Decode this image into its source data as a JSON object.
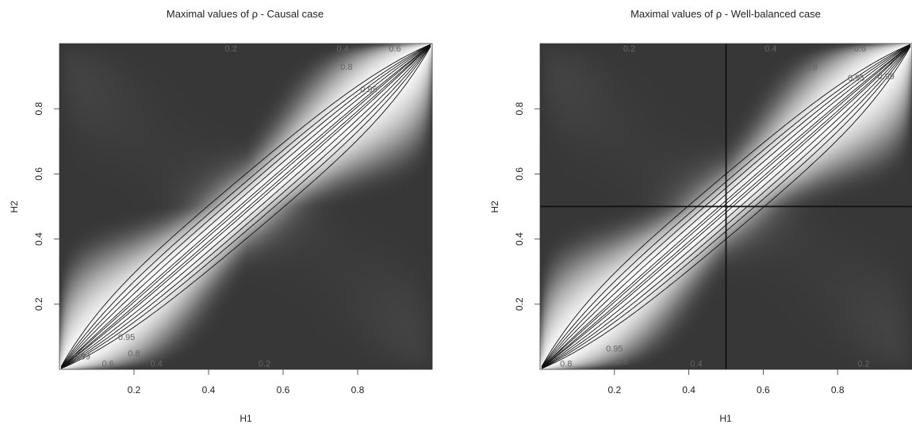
{
  "chart_data": [
    {
      "type": "heatmap",
      "title": "Maximal values of ρ - Causal case",
      "xlabel": "H1",
      "ylabel": "H2",
      "xlim": [
        0,
        1
      ],
      "ylim": [
        0,
        1
      ],
      "x_ticks": [
        0.2,
        0.4,
        0.6,
        0.8
      ],
      "y_ticks": [
        0.2,
        0.4,
        0.6,
        0.8
      ],
      "x_tick_labels": [
        "0.2",
        "0.4",
        "0.6",
        "0.8"
      ],
      "y_tick_labels": [
        "0.2",
        "0.4",
        "0.6",
        "0.8"
      ],
      "contour_levels": [
        0.2,
        0.4,
        0.6,
        0.8,
        0.95,
        0.99
      ],
      "contour_labels": [
        {
          "text": "0.2",
          "h1": 0.46,
          "h2": 0.985
        },
        {
          "text": "0.4",
          "h1": 0.76,
          "h2": 0.985
        },
        {
          "text": "0.6",
          "h1": 0.9,
          "h2": 0.985
        },
        {
          "text": "0.8",
          "h1": 0.77,
          "h2": 0.93
        },
        {
          "text": "0.95",
          "h1": 0.83,
          "h2": 0.86
        },
        {
          "text": "0.99",
          "h1": 0.06,
          "h2": 0.04
        },
        {
          "text": "0.95",
          "h1": 0.18,
          "h2": 0.1
        },
        {
          "text": "0.8",
          "h1": 0.2,
          "h2": 0.05
        },
        {
          "text": "0.6",
          "h1": 0.13,
          "h2": 0.018
        },
        {
          "text": "0.4",
          "h1": 0.26,
          "h2": 0.018
        },
        {
          "text": "0.2",
          "h1": 0.55,
          "h2": 0.018
        }
      ],
      "reference_lines": [],
      "colormap": "white (rho=1 on diagonal) to dark gray (rho=0 at off-diagonal corners)"
    },
    {
      "type": "heatmap",
      "title": "Maximal values of ρ - Well-balanced case",
      "xlabel": "H1",
      "ylabel": "H2",
      "xlim": [
        0,
        1
      ],
      "ylim": [
        0,
        1
      ],
      "x_ticks": [
        0.2,
        0.4,
        0.6,
        0.8
      ],
      "y_ticks": [
        0.2,
        0.4,
        0.6,
        0.8
      ],
      "x_tick_labels": [
        "0.2",
        "0.4",
        "0.6",
        "0.8"
      ],
      "y_tick_labels": [
        "0.2",
        "0.4",
        "0.6",
        "0.8"
      ],
      "contour_levels": [
        0.2,
        0.4,
        0.6,
        0.8,
        0.95,
        0.99
      ],
      "contour_labels": [
        {
          "text": "0.2",
          "h1": 0.24,
          "h2": 0.985
        },
        {
          "text": "0.4",
          "h1": 0.62,
          "h2": 0.985
        },
        {
          "text": "0.6",
          "h1": 0.86,
          "h2": 0.985
        },
        {
          "text": "0.8",
          "h1": 0.73,
          "h2": 0.93
        },
        {
          "text": "0.95",
          "h1": 0.85,
          "h2": 0.895
        },
        {
          "text": "0.99",
          "h1": 0.93,
          "h2": 0.9
        },
        {
          "text": "0.95",
          "h1": 0.2,
          "h2": 0.065
        },
        {
          "text": "0.8",
          "h1": 0.07,
          "h2": 0.018
        },
        {
          "text": "0.6",
          "h1": 0.22,
          "h2": 0.024
        },
        {
          "text": "0.4",
          "h1": 0.42,
          "h2": 0.018
        },
        {
          "text": "0.2",
          "h1": 0.87,
          "h2": 0.018
        }
      ],
      "reference_lines": [
        {
          "orientation": "vertical",
          "h1": 0.5
        },
        {
          "orientation": "horizontal",
          "h2": 0.5
        }
      ],
      "colormap": "white (rho=1 on diagonal) to dark gray (rho=0 at off-diagonal corners)"
    }
  ]
}
